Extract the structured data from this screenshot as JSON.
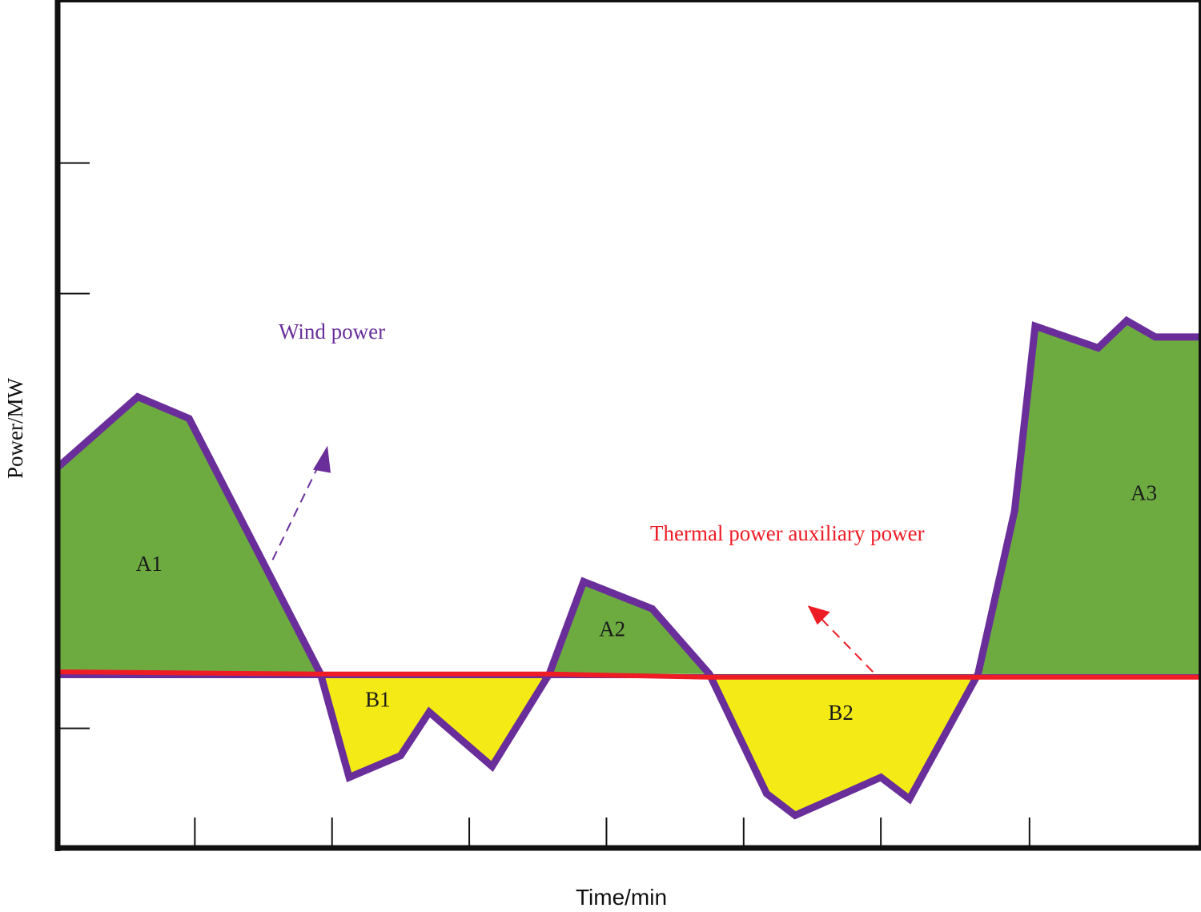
{
  "chart_data": {
    "type": "area",
    "title": "",
    "xlabel": "Time/min",
    "ylabel": "Power/MW",
    "xlim": [
      0,
      100
    ],
    "ylim": [
      -16,
      62
    ],
    "x_ticks": [
      12,
      24,
      36,
      48,
      60,
      72,
      85
    ],
    "y_ticks": [
      -5,
      35,
      47
    ],
    "grid": false,
    "series": [
      {
        "name": "Wind power",
        "color": "#6a2e9a",
        "x": [
          0,
          7,
          11.5,
          23,
          25.5,
          30,
          32.5,
          38,
          43,
          46,
          52,
          57,
          62,
          64.5,
          72,
          74.5,
          80.5,
          83.7,
          85.5,
          91,
          93.5,
          96,
          100
        ],
        "values": [
          19,
          25.5,
          23.5,
          0,
          -9.5,
          -7.5,
          -3.5,
          -8.5,
          0,
          8.5,
          6,
          0,
          -11,
          -13,
          -9.5,
          -11.5,
          0,
          15,
          32,
          30,
          32.5,
          31,
          31
        ]
      },
      {
        "name": "Thermal power auxiliary power",
        "color": "#ee1c25",
        "x": [
          0,
          23,
          43,
          57,
          100
        ],
        "values": [
          0.2,
          0,
          0,
          -0.3,
          -0.3
        ]
      }
    ],
    "regions": [
      {
        "label": "A1",
        "type": "surplus",
        "color": "#6dab41",
        "x": 8,
        "y": 9.5
      },
      {
        "label": "B1",
        "type": "deficit",
        "color": "#f4eb16",
        "x": 28,
        "y": -3
      },
      {
        "label": "A2",
        "type": "surplus",
        "color": "#6dab41",
        "x": 48.5,
        "y": 3.5
      },
      {
        "label": "B2",
        "type": "deficit",
        "color": "#f4eb16",
        "x": 68.5,
        "y": -4.2
      },
      {
        "label": "A3",
        "type": "surplus",
        "color": "#6dab41",
        "x": 95,
        "y": 16
      }
    ],
    "annotations": [
      {
        "text": "Wind power",
        "color": "#6a2e9a"
      },
      {
        "text": "Thermal power auxiliary power",
        "color": "#ee1c25"
      }
    ]
  }
}
